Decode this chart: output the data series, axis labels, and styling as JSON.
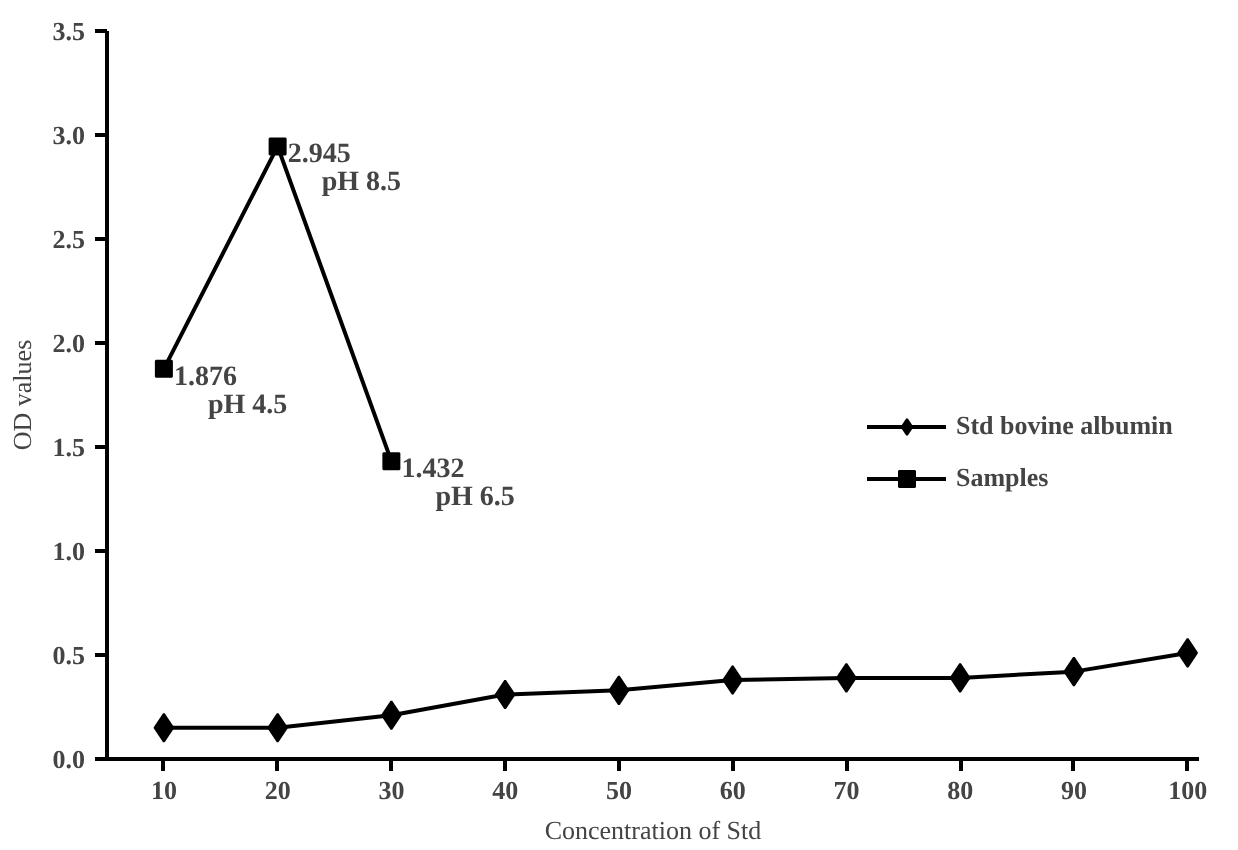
{
  "chart_data": {
    "type": "line",
    "xlabel": "Concentration of Std",
    "ylabel": "OD values",
    "x": [
      10,
      20,
      30,
      40,
      50,
      60,
      70,
      80,
      90,
      100
    ],
    "series": [
      {
        "name": "Std bovine albumin",
        "color": "#000000",
        "marker": "diamond",
        "values": [
          0.15,
          0.15,
          0.21,
          0.31,
          0.33,
          0.38,
          0.39,
          0.39,
          0.42,
          0.51
        ]
      },
      {
        "name": "Samples",
        "color": "#000000",
        "marker": "square",
        "x": [
          10,
          20,
          30
        ],
        "values": [
          1.876,
          2.945,
          1.432
        ],
        "value_labels": [
          "1.876",
          "2.945",
          "1.432"
        ]
      }
    ],
    "annotations": [
      {
        "text": "pH 4.5",
        "x": 10,
        "y": 1.876
      },
      {
        "text": "pH 8.5",
        "x": 20,
        "y": 2.945
      },
      {
        "text": "pH 6.5",
        "x": 30,
        "y": 1.432
      }
    ],
    "xlim": [
      5,
      101
    ],
    "ylim": [
      0,
      3.5
    ],
    "xticks": [
      10,
      20,
      30,
      40,
      50,
      60,
      70,
      80,
      90,
      100
    ],
    "yticks": [
      {
        "value": 0,
        "label": "0.0"
      },
      {
        "value": 0.5,
        "label": "0.5"
      },
      {
        "value": 1,
        "label": "1.0"
      },
      {
        "value": 1.5,
        "label": "1.5"
      },
      {
        "value": 2,
        "label": "2.0"
      },
      {
        "value": 2.5,
        "label": "2.5"
      },
      {
        "value": 3,
        "label": "3.0"
      },
      {
        "value": 3.5,
        "label": "3.5"
      }
    ],
    "grid": false,
    "legend": "right",
    "line_style": "solid"
  }
}
